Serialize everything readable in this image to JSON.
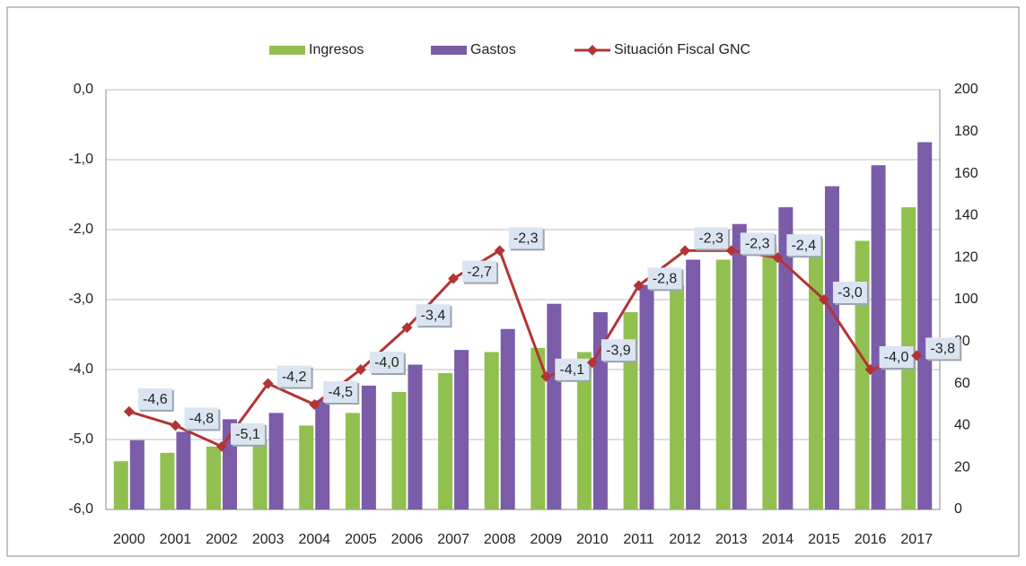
{
  "chart_data": {
    "type": "bar-line",
    "categories": [
      "2000",
      "2001",
      "2002",
      "2003",
      "2004",
      "2005",
      "2006",
      "2007",
      "2008",
      "2009",
      "2010",
      "2011",
      "2012",
      "2013",
      "2014",
      "2015",
      "2016",
      "2017"
    ],
    "series": [
      {
        "name": "Ingresos",
        "type": "bar",
        "axis": "y2",
        "color": "#92c050",
        "values": [
          23,
          27,
          30,
          33,
          40,
          46,
          56,
          65,
          75,
          77,
          75,
          94,
          107,
          119,
          126,
          129,
          128,
          144
        ]
      },
      {
        "name": "Gastos",
        "type": "bar",
        "axis": "y2",
        "color": "#7b5ca9",
        "values": [
          33,
          37,
          43,
          46,
          52,
          59,
          69,
          76,
          86,
          98,
          94,
          107,
          119,
          136,
          144,
          154,
          164,
          175
        ]
      },
      {
        "name": "Situación Fiscal GNC",
        "type": "line",
        "axis": "y",
        "color": "#b33434",
        "values": [
          -4.6,
          -4.8,
          -5.1,
          -4.2,
          -4.5,
          -4.0,
          -3.4,
          -2.7,
          -2.3,
          -4.1,
          -3.9,
          -2.8,
          -2.3,
          -2.3,
          -2.4,
          -3.0,
          -4.0,
          -3.8
        ],
        "value_labels": [
          "-4,6",
          "-4,8",
          "-5,1",
          "-4,2",
          "-4,5",
          "-4,0",
          "-3,4",
          "-2,7",
          "-2,3",
          "-4,1",
          "-3,9",
          "-2,8",
          "-2,3",
          "-2,3",
          "-2,4",
          "-3,0",
          "-4,0",
          "-3,8"
        ]
      }
    ],
    "ylim": [
      -6,
      0
    ],
    "yticks": [
      {
        "value": -6,
        "label": "-6,0"
      },
      {
        "value": -5,
        "label": "-5,0"
      },
      {
        "value": -4,
        "label": "-4,0"
      },
      {
        "value": -3,
        "label": "-3,0"
      },
      {
        "value": -2,
        "label": "-2,0"
      },
      {
        "value": -1,
        "label": "-1,0"
      },
      {
        "value": 0,
        "label": "0,0"
      }
    ],
    "y2lim": [
      0,
      200
    ],
    "y2ticks": [
      0,
      20,
      40,
      60,
      80,
      100,
      120,
      140,
      160,
      180,
      200
    ],
    "grid": true,
    "legend": "top"
  }
}
